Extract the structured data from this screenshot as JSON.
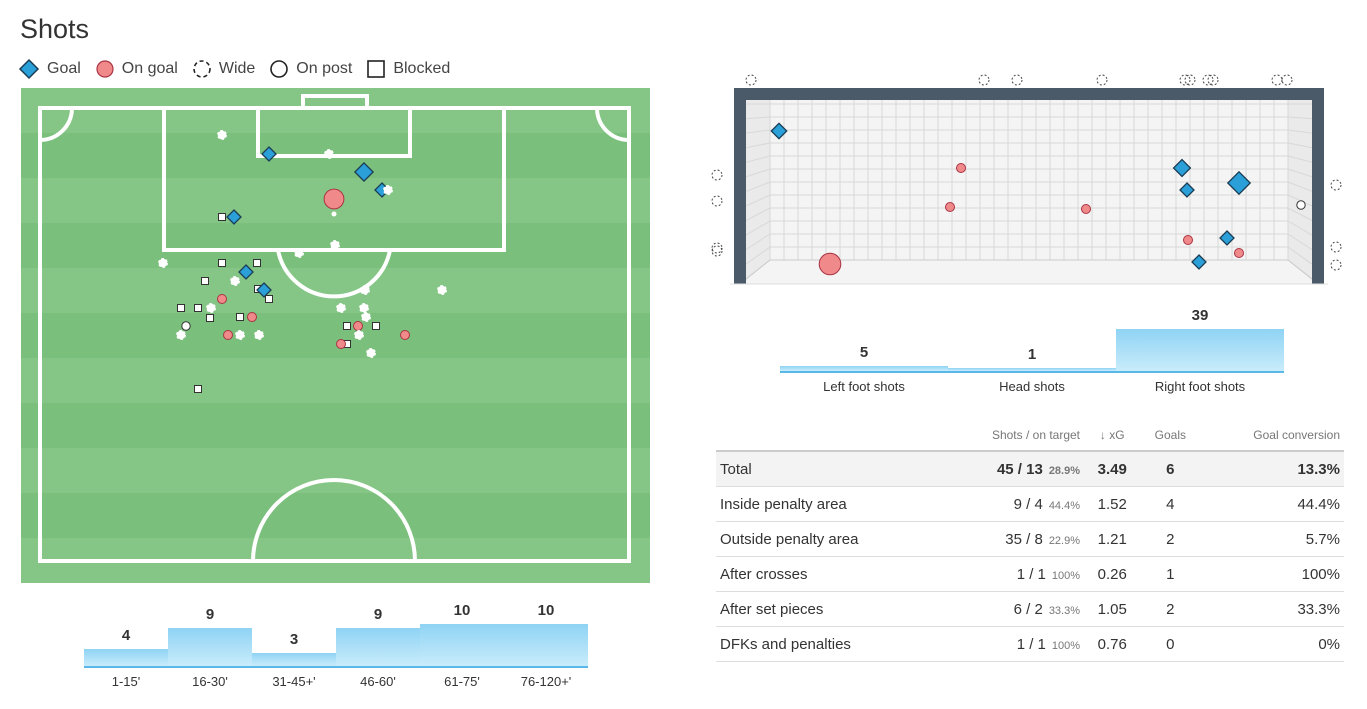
{
  "title": "Shots",
  "legend": [
    {
      "key": "goal",
      "label": "Goal"
    },
    {
      "key": "on_goal",
      "label": "On goal"
    },
    {
      "key": "wide",
      "label": "Wide"
    },
    {
      "key": "on_post",
      "label": "On post"
    },
    {
      "key": "blocked",
      "label": "Blocked"
    }
  ],
  "colors": {
    "goal": "#2b9fd8",
    "on_goal": "#f08a8a",
    "pitch_light": "#85c687",
    "pitch_dark": "#7bbf7d",
    "goal_frame": "#4a5a68"
  },
  "time_bars": [
    {
      "label": "1-15'",
      "value": 4
    },
    {
      "label": "16-30'",
      "value": 9
    },
    {
      "label": "31-45+'",
      "value": 3
    },
    {
      "label": "46-60'",
      "value": 9
    },
    {
      "label": "61-75'",
      "value": 10
    },
    {
      "label": "76-120+'",
      "value": 10
    }
  ],
  "body_bars": [
    {
      "label": "Left foot shots",
      "value": 5
    },
    {
      "label": "Head shots",
      "value": 1
    },
    {
      "label": "Right foot shots",
      "value": 39
    }
  ],
  "table": {
    "headers": {
      "shots": "Shots / on target",
      "xg": "↓ xG",
      "goals": "Goals",
      "conversion": "Goal conversion"
    },
    "rows": [
      {
        "label": "Total",
        "shots": "45 / 13",
        "pct": "28.9%",
        "xg": "3.49",
        "goals": "6",
        "conversion": "13.3%"
      },
      {
        "label": "Inside penalty area",
        "shots": "9 / 4",
        "pct": "44.4%",
        "xg": "1.52",
        "goals": "4",
        "conversion": "44.4%"
      },
      {
        "label": "Outside penalty area",
        "shots": "35 / 8",
        "pct": "22.9%",
        "xg": "1.21",
        "goals": "2",
        "conversion": "5.7%"
      },
      {
        "label": "After crosses",
        "shots": "1 / 1",
        "pct": "100%",
        "xg": "0.26",
        "goals": "1",
        "conversion": "100%"
      },
      {
        "label": "After set pieces",
        "shots": "6 / 2",
        "pct": "33.3%",
        "xg": "1.05",
        "goals": "2",
        "conversion": "33.3%"
      },
      {
        "label": "DFKs and penalties",
        "shots": "1 / 1",
        "pct": "100%",
        "xg": "0.76",
        "goals": "0",
        "conversion": "0%"
      }
    ]
  }
}
